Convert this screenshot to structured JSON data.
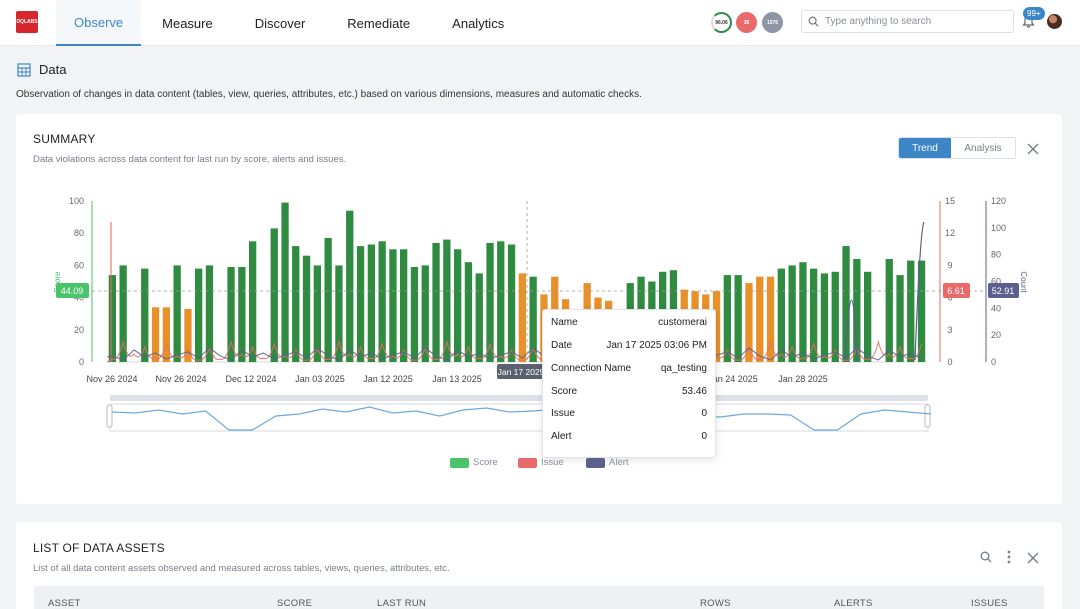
{
  "brand": {
    "logo_text": "DQLABS"
  },
  "nav": {
    "items": [
      {
        "label": "Observe",
        "active": true
      },
      {
        "label": "Measure"
      },
      {
        "label": "Discover"
      },
      {
        "label": "Remediate"
      },
      {
        "label": "Analytics"
      }
    ]
  },
  "header": {
    "pills": [
      "96.06",
      "36",
      "1576"
    ],
    "search_placeholder": "Type anything to search",
    "notification_count": "99+"
  },
  "page": {
    "title": "Data",
    "description": "Observation of changes in data content (tables, view, queries, attributes, etc.) based on various dimensions, measures and automatic checks."
  },
  "summary": {
    "title": "SUMMARY",
    "subtitle": "Data violations across data content for last run by score, alerts and issues.",
    "toggle": {
      "trend": "Trend",
      "analysis": "Analysis"
    },
    "crosshair": {
      "score": "44.09",
      "issue": "6.61",
      "alert": "52.91",
      "x_label": "Jan 17 2025"
    },
    "tooltip": {
      "rows": [
        {
          "label": "Name",
          "value": "customerai"
        },
        {
          "label": "Date",
          "value": "Jan 17 2025 03:06 PM"
        },
        {
          "label": "Connection Name",
          "value": "qa_testing"
        },
        {
          "label": "Score",
          "value": "53.46"
        },
        {
          "label": "Issue",
          "value": "0"
        },
        {
          "label": "Alert",
          "value": "0"
        }
      ]
    },
    "legend": [
      "Score",
      "Issue",
      "Alert"
    ]
  },
  "chart_data": {
    "type": "bar",
    "x_tick_labels": [
      "Nov 26 2024",
      "Nov 26 2024",
      "Dec 12 2024",
      "Jan 03 2025",
      "Jan 12 2025",
      "Jan 13 2025",
      "Jan 17 2025",
      "Jan 17 2025",
      "Jan 22 2025",
      "Jan 24 2025",
      "Jan 28 2025"
    ],
    "y_left": {
      "label": "Score",
      "ticks": [
        0,
        20,
        40,
        60,
        80,
        100
      ],
      "ylim": [
        0,
        100
      ]
    },
    "y_right_issue": {
      "ticks": [
        0,
        3,
        6,
        9,
        12,
        15
      ],
      "ylim": [
        0,
        15
      ]
    },
    "y_right_alert": {
      "label": "Count",
      "ticks": [
        0,
        20,
        40,
        60,
        80,
        100,
        120
      ],
      "ylim": [
        0,
        120
      ]
    },
    "colors": {
      "score_green": "#2e8b3f",
      "score_orange": "#e8912a",
      "issue": "#e86a6a",
      "alert": "#5a5f8e",
      "score_axis": "#49c46a"
    },
    "series": [
      {
        "name": "Score",
        "values": [
          54,
          60,
          0,
          58,
          34,
          34,
          60,
          33,
          58,
          60,
          0,
          59,
          59,
          75,
          0,
          83,
          99,
          72,
          66,
          60,
          77,
          60,
          94,
          72,
          73,
          75,
          70,
          70,
          59,
          60,
          74,
          76,
          70,
          62,
          55,
          74,
          75,
          73,
          55,
          53,
          42,
          53,
          39,
          30,
          49,
          40,
          38,
          30,
          49,
          53,
          50,
          56,
          57,
          45,
          44,
          42,
          44,
          54,
          54,
          49,
          53,
          53,
          58,
          60,
          62,
          58,
          55,
          56,
          72,
          64,
          56,
          0,
          64,
          54,
          63,
          63
        ]
      }
    ],
    "score_colors": [
      "g",
      "g",
      "g",
      "g",
      "o",
      "o",
      "g",
      "o",
      "g",
      "g",
      "g",
      "g",
      "g",
      "g",
      "g",
      "g",
      "g",
      "g",
      "g",
      "g",
      "g",
      "g",
      "g",
      "g",
      "g",
      "g",
      "g",
      "g",
      "g",
      "g",
      "g",
      "g",
      "g",
      "g",
      "g",
      "g",
      "g",
      "g",
      "o",
      "g",
      "o",
      "o",
      "o",
      "o",
      "o",
      "o",
      "o",
      "o",
      "g",
      "g",
      "g",
      "g",
      "g",
      "o",
      "o",
      "o",
      "o",
      "g",
      "g",
      "o",
      "o",
      "o",
      "g",
      "g",
      "g",
      "g",
      "g",
      "g",
      "g",
      "g",
      "g",
      "g",
      "g",
      "g",
      "g",
      "g"
    ]
  },
  "assets": {
    "title": "LIST OF DATA ASSETS",
    "subtitle": "List of all data content assets observed and measured across tables, views, queries, attributes, etc.",
    "columns": [
      "ASSET",
      "SCORE",
      "LAST RUN",
      "ROWS",
      "ALERTS",
      "ISSUES"
    ]
  }
}
